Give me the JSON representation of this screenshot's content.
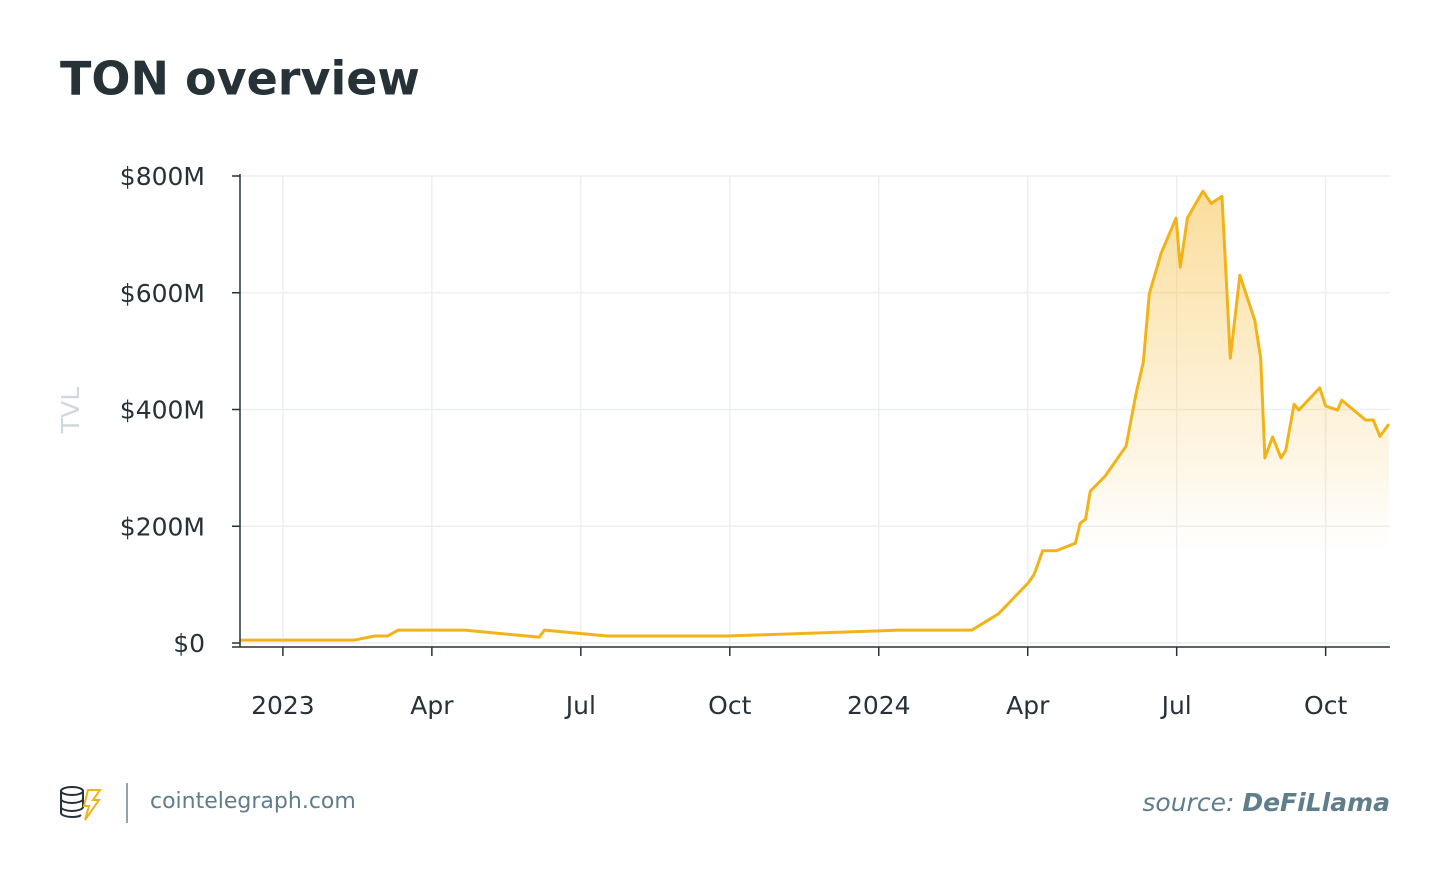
{
  "chart_data": {
    "type": "line",
    "title": "TON overview",
    "ylabel": "TVL",
    "color": "#f2b318",
    "grid": true,
    "x": [
      2022.928,
      2023.12,
      2023.154,
      2023.176,
      2023.193,
      2023.305,
      2023.43,
      2023.439,
      2023.544,
      2023.747,
      2024.033,
      2024.156,
      2024.201,
      2024.231,
      2024.251,
      2024.261,
      2024.275,
      2024.298,
      2024.33,
      2024.338,
      2024.347,
      2024.355,
      2024.38,
      2024.415,
      2024.432,
      2024.444,
      2024.454,
      2024.474,
      2024.499,
      2024.506,
      2024.518,
      2024.544,
      2024.558,
      2024.576,
      2024.59,
      2024.606,
      2024.631,
      2024.641,
      2024.648,
      2024.661,
      2024.675,
      2024.683,
      2024.697,
      2024.705,
      2024.74,
      2024.75,
      2024.77,
      2024.777,
      2024.817,
      2024.83,
      2024.841,
      2024.856
    ],
    "values": [
      5000000,
      5000000,
      12000000,
      12000000,
      22000000,
      22000000,
      10000000,
      22000000,
      12000000,
      12000000,
      22000000,
      22000000,
      50000000,
      82000000,
      103000000,
      118000000,
      158000000,
      158000000,
      171000000,
      205000000,
      212000000,
      260000000,
      286000000,
      337000000,
      428000000,
      481000000,
      598000000,
      668000000,
      728000000,
      644000000,
      728000000,
      774000000,
      753000000,
      765000000,
      488000000,
      630000000,
      553000000,
      488000000,
      317000000,
      353000000,
      317000000,
      330000000,
      409000000,
      399000000,
      437000000,
      406000000,
      399000000,
      416000000,
      382000000,
      382000000,
      354000000,
      375000000
    ],
    "xlim": [
      2022.928,
      2024.858
    ],
    "xticks": [
      2023,
      {
        "value": 2023.25,
        "label": "Apr"
      },
      {
        "value": 2023.5,
        "label": "Jul"
      },
      {
        "value": 2023.75,
        "label": "Oct"
      },
      2024,
      {
        "value": 2024.25,
        "label": "Apr"
      },
      {
        "value": 2024.5,
        "label": "Jul"
      },
      {
        "value": 2024.75,
        "label": "Oct"
      }
    ],
    "ylim": [
      0,
      800000000
    ],
    "yticks": [
      {
        "value": 0,
        "label": "$0"
      },
      {
        "value": 200000000,
        "label": "$200M"
      },
      {
        "value": 400000000,
        "label": "$400M"
      },
      {
        "value": 600000000,
        "label": "$600M"
      },
      {
        "value": 800000000,
        "label": "$800M"
      }
    ]
  },
  "footer": {
    "site": "cointelegraph.com",
    "source_label": "source:",
    "source_name": "DeFiLlama"
  }
}
